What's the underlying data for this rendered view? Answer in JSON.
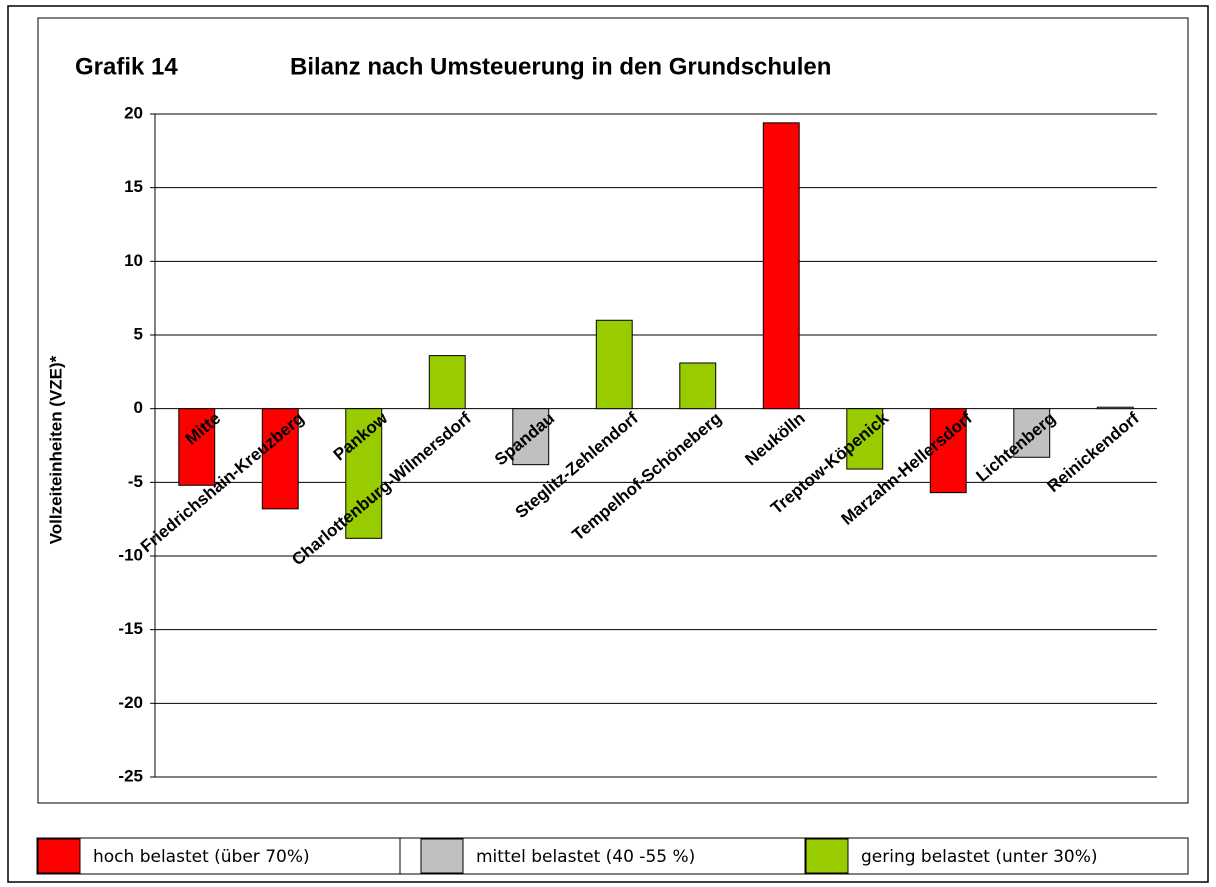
{
  "chart_data": {
    "type": "bar",
    "title": "Grafik 14",
    "subtitle": "Bilanz nach Umsteuerung in den Grundschulen",
    "y_label": "Vollzeiteinheiten (VZE)*",
    "categories": [
      "Mitte",
      "Friedrichshain-Kreuzberg",
      "Pankow",
      "Charlottenburg-Wilmersdorf",
      "Spandau",
      "Steglitz-Zehlendorf",
      "Tempelhof-Schöneberg",
      "Neukölln",
      "Treptow-Köpenick",
      "Marzahn-Hellersdorf",
      "Lichtenberg",
      "Reinickendorf"
    ],
    "values": [
      -5.2,
      -6.8,
      -8.8,
      3.6,
      -3.8,
      6.0,
      3.1,
      19.4,
      -4.1,
      -5.7,
      -3.3,
      0.1
    ],
    "colors": [
      "#ff0000",
      "#ff0000",
      "#99cc00",
      "#99cc00",
      "#c0c0c0",
      "#99cc00",
      "#99cc00",
      "#ff0000",
      "#99cc00",
      "#ff0000",
      "#c0c0c0",
      "#c0c0c0"
    ],
    "ylim": [
      -25,
      20
    ],
    "yticks": [
      -25,
      -20,
      -15,
      -10,
      -5,
      0,
      5,
      10,
      15,
      20
    ],
    "grid": true,
    "legend": [
      {
        "label": "hoch belastet (über 70%)",
        "color": "#ff0000"
      },
      {
        "label": "mittel belastet (40 -55 %)",
        "color": "#c0c0c0"
      },
      {
        "label": "gering belastet (unter 30%)",
        "color": "#99cc00"
      }
    ]
  }
}
